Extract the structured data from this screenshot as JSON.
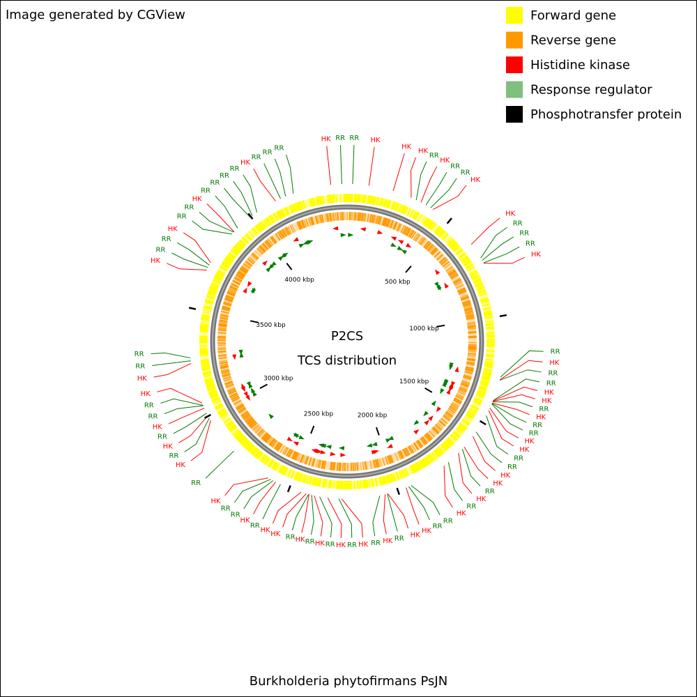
{
  "header": {
    "credit": "Image generated by CGView"
  },
  "legend": [
    {
      "label": "Forward gene",
      "color": "#ffff00"
    },
    {
      "label": "Reverse gene",
      "color": "#ff9900"
    },
    {
      "label": "Histidine kinase",
      "color": "#ff0000"
    },
    {
      "label": "Response regulator",
      "color": "#7fbf7f"
    },
    {
      "label": "Phosphotransfer protein",
      "color": "#000000"
    }
  ],
  "map": {
    "title": "P2CS",
    "subtitle": "TCS distribution",
    "xlim": [
      0,
      4467
    ],
    "ticks": [
      {
        "value": 500,
        "label": "500 kbp"
      },
      {
        "value": 1000,
        "label": "1000 kbp"
      },
      {
        "value": 1500,
        "label": "1500 kbp"
      },
      {
        "value": 2000,
        "label": "2000 kbp"
      },
      {
        "value": 2500,
        "label": "2500 kbp"
      },
      {
        "value": 3000,
        "label": "3000 kbp"
      },
      {
        "value": 3500,
        "label": "3500 kbp"
      },
      {
        "value": 4000,
        "label": "4000 kbp"
      }
    ],
    "label_colors": {
      "HK": "#ff0000",
      "RR": "#007a00"
    },
    "features": [
      {
        "label": "RR",
        "position": 25
      },
      {
        "label": "HK",
        "position": 99
      },
      {
        "label": "HK",
        "position": 211
      },
      {
        "label": "HK",
        "position": 298
      },
      {
        "label": "RR",
        "position": 323
      },
      {
        "label": "HK",
        "position": 347
      },
      {
        "label": "RR",
        "position": 372
      },
      {
        "label": "RR",
        "position": 397
      },
      {
        "label": "HK",
        "position": 410
      },
      {
        "label": "HK",
        "position": 645
      },
      {
        "label": "RR",
        "position": 720
      },
      {
        "label": "RR",
        "position": 732
      },
      {
        "label": "RR",
        "position": 745
      },
      {
        "label": "HK",
        "position": 747
      },
      {
        "label": "RR",
        "position": 1278
      },
      {
        "label": "HK",
        "position": 1291
      },
      {
        "label": "RR",
        "position": 1293
      },
      {
        "label": "RR",
        "position": 1390
      },
      {
        "label": "HK",
        "position": 1392
      },
      {
        "label": "HK",
        "position": 1394
      },
      {
        "label": "RR",
        "position": 1396
      },
      {
        "label": "HK",
        "position": 1402
      },
      {
        "label": "RR",
        "position": 1404
      },
      {
        "label": "RR",
        "position": 1406
      },
      {
        "label": "HK",
        "position": 1427
      },
      {
        "label": "HK",
        "position": 1439
      },
      {
        "label": "RR",
        "position": 1464
      },
      {
        "label": "RR",
        "position": 1551
      },
      {
        "label": "HK",
        "position": 1576
      },
      {
        "label": "HK",
        "position": 1638
      },
      {
        "label": "RR",
        "position": 1650
      },
      {
        "label": "HK",
        "position": 1675
      },
      {
        "label": "RR",
        "position": 1737
      },
      {
        "label": "HK",
        "position": 1762
      },
      {
        "label": "RR",
        "position": 1936
      },
      {
        "label": "RR",
        "position": 1948
      },
      {
        "label": "HK",
        "position": 1961
      },
      {
        "label": "HK",
        "position": 2048
      },
      {
        "label": "RR",
        "position": 2050
      },
      {
        "label": "HK",
        "position": 2060
      },
      {
        "label": "RR",
        "position": 2085
      },
      {
        "label": "HK",
        "position": 2258
      },
      {
        "label": "RR",
        "position": 2271
      },
      {
        "label": "HK",
        "position": 2321
      },
      {
        "label": "RR",
        "position": 2358
      },
      {
        "label": "HK",
        "position": 2383
      },
      {
        "label": "RR",
        "position": 2395
      },
      {
        "label": "HK",
        "position": 2407
      },
      {
        "label": "RR",
        "position": 2409
      },
      {
        "label": "HK",
        "position": 2420
      },
      {
        "label": "HK",
        "position": 2444
      },
      {
        "label": "RR",
        "position": 2544
      },
      {
        "label": "HK",
        "position": 2568
      },
      {
        "label": "RR",
        "position": 2581
      },
      {
        "label": "RR",
        "position": 2593
      },
      {
        "label": "HK",
        "position": 2606
      },
      {
        "label": "RR",
        "position": 2804
      },
      {
        "label": "HK",
        "position": 2978
      },
      {
        "label": "RR",
        "position": 2990
      },
      {
        "label": "HK",
        "position": 3003
      },
      {
        "label": "RR",
        "position": 3015
      },
      {
        "label": "HK",
        "position": 3040
      },
      {
        "label": "RR",
        "position": 3052
      },
      {
        "label": "RR",
        "position": 3054
      },
      {
        "label": "HK",
        "position": 3065
      },
      {
        "label": "HK",
        "position": 3251
      },
      {
        "label": "RR",
        "position": 3263
      },
      {
        "label": "RR",
        "position": 3276
      },
      {
        "label": "HK",
        "position": 3685
      },
      {
        "label": "RR",
        "position": 3698
      },
      {
        "label": "RR",
        "position": 3710
      },
      {
        "label": "HK",
        "position": 3723
      },
      {
        "label": "RR",
        "position": 3884
      },
      {
        "label": "RR",
        "position": 3896
      },
      {
        "label": "HK",
        "position": 3898
      },
      {
        "label": "RR",
        "position": 3921
      },
      {
        "label": "RR",
        "position": 3996
      },
      {
        "label": "RR",
        "position": 4008
      },
      {
        "label": "RR",
        "position": 4033
      },
      {
        "label": "HK",
        "position": 4132
      },
      {
        "label": "RR",
        "position": 4157
      },
      {
        "label": "RR",
        "position": 4182
      },
      {
        "label": "RR",
        "position": 4219
      },
      {
        "label": "HK",
        "position": 4393
      },
      {
        "label": "RR",
        "position": 4443
      }
    ]
  },
  "footer": {
    "organism": "Burkholderia phytofirmans PsJN"
  }
}
